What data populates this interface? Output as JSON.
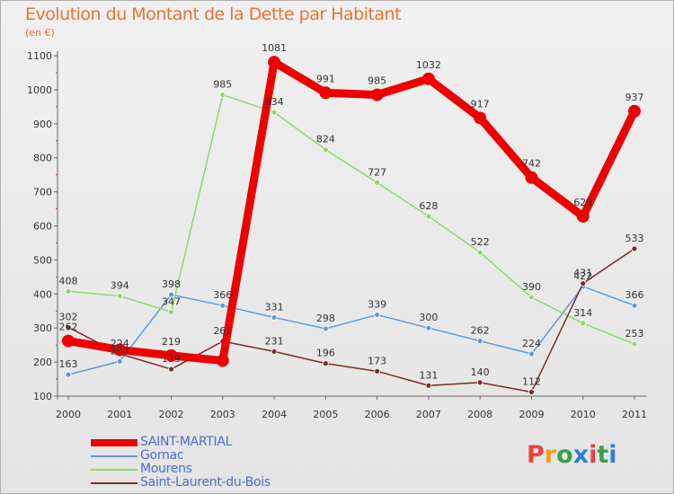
{
  "title": "Evolution du Montant de la Dette par Habitant",
  "subtitle": "(en €)",
  "logo": {
    "text": "Proxiti",
    "colors": [
      "#e8433a",
      "#f39c1f",
      "#3aa04a",
      "#2f7fd1",
      "#e8433a",
      "#3aa04a",
      "#2f7fd1"
    ]
  },
  "chart_data": {
    "type": "line",
    "x": [
      "2000",
      "2001",
      "2002",
      "2003",
      "2004",
      "2005",
      "2006",
      "2007",
      "2008",
      "2009",
      "2010",
      "2011"
    ],
    "ylim": [
      100,
      1100
    ],
    "yticks": [
      "100",
      "200",
      "300",
      "400",
      "500",
      "600",
      "700",
      "800",
      "900",
      "1000",
      "1100"
    ],
    "grid": false,
    "legend_position": "bottom-left",
    "series": [
      {
        "name": "SAINT-MARTIAL",
        "color": "#ee0000",
        "width": 9,
        "marker": 7,
        "values": [
          262,
          236,
          219,
          204,
          1081,
          991,
          985,
          1032,
          917,
          742,
          628,
          937
        ],
        "labels": [
          "262",
          "",
          "219",
          "",
          "1081",
          "991",
          "985",
          "1032",
          "917",
          "742",
          "628",
          "937"
        ]
      },
      {
        "name": "Gornac",
        "color": "#5b9bd5",
        "width": 1.5,
        "marker": 3,
        "values": [
          163,
          202,
          398,
          366,
          331,
          298,
          339,
          300,
          262,
          224,
          422,
          366
        ],
        "labels": [
          "163",
          "202",
          "398",
          "366",
          "331",
          "298",
          "339",
          "300",
          "262",
          "224",
          "422",
          "366"
        ]
      },
      {
        "name": "Mourens",
        "color": "#8ed86a",
        "width": 1.5,
        "marker": 3,
        "values": [
          408,
          394,
          347,
          985,
          934,
          824,
          727,
          628,
          522,
          390,
          314,
          253
        ],
        "labels": [
          "408",
          "394",
          "347",
          "985",
          "934",
          "824",
          "727",
          "628",
          "522",
          "390",
          "314",
          "253"
        ]
      },
      {
        "name": "Saint-Laurent-du-Bois",
        "color": "#7a2a2a",
        "width": 1.5,
        "marker": 3,
        "values": [
          302,
          224,
          179,
          261,
          231,
          196,
          173,
          131,
          140,
          112,
          431,
          533
        ],
        "labels": [
          "302",
          "224",
          "179",
          "261",
          "231",
          "196",
          "173",
          "131",
          "140",
          "112",
          "431",
          "533"
        ]
      }
    ]
  }
}
